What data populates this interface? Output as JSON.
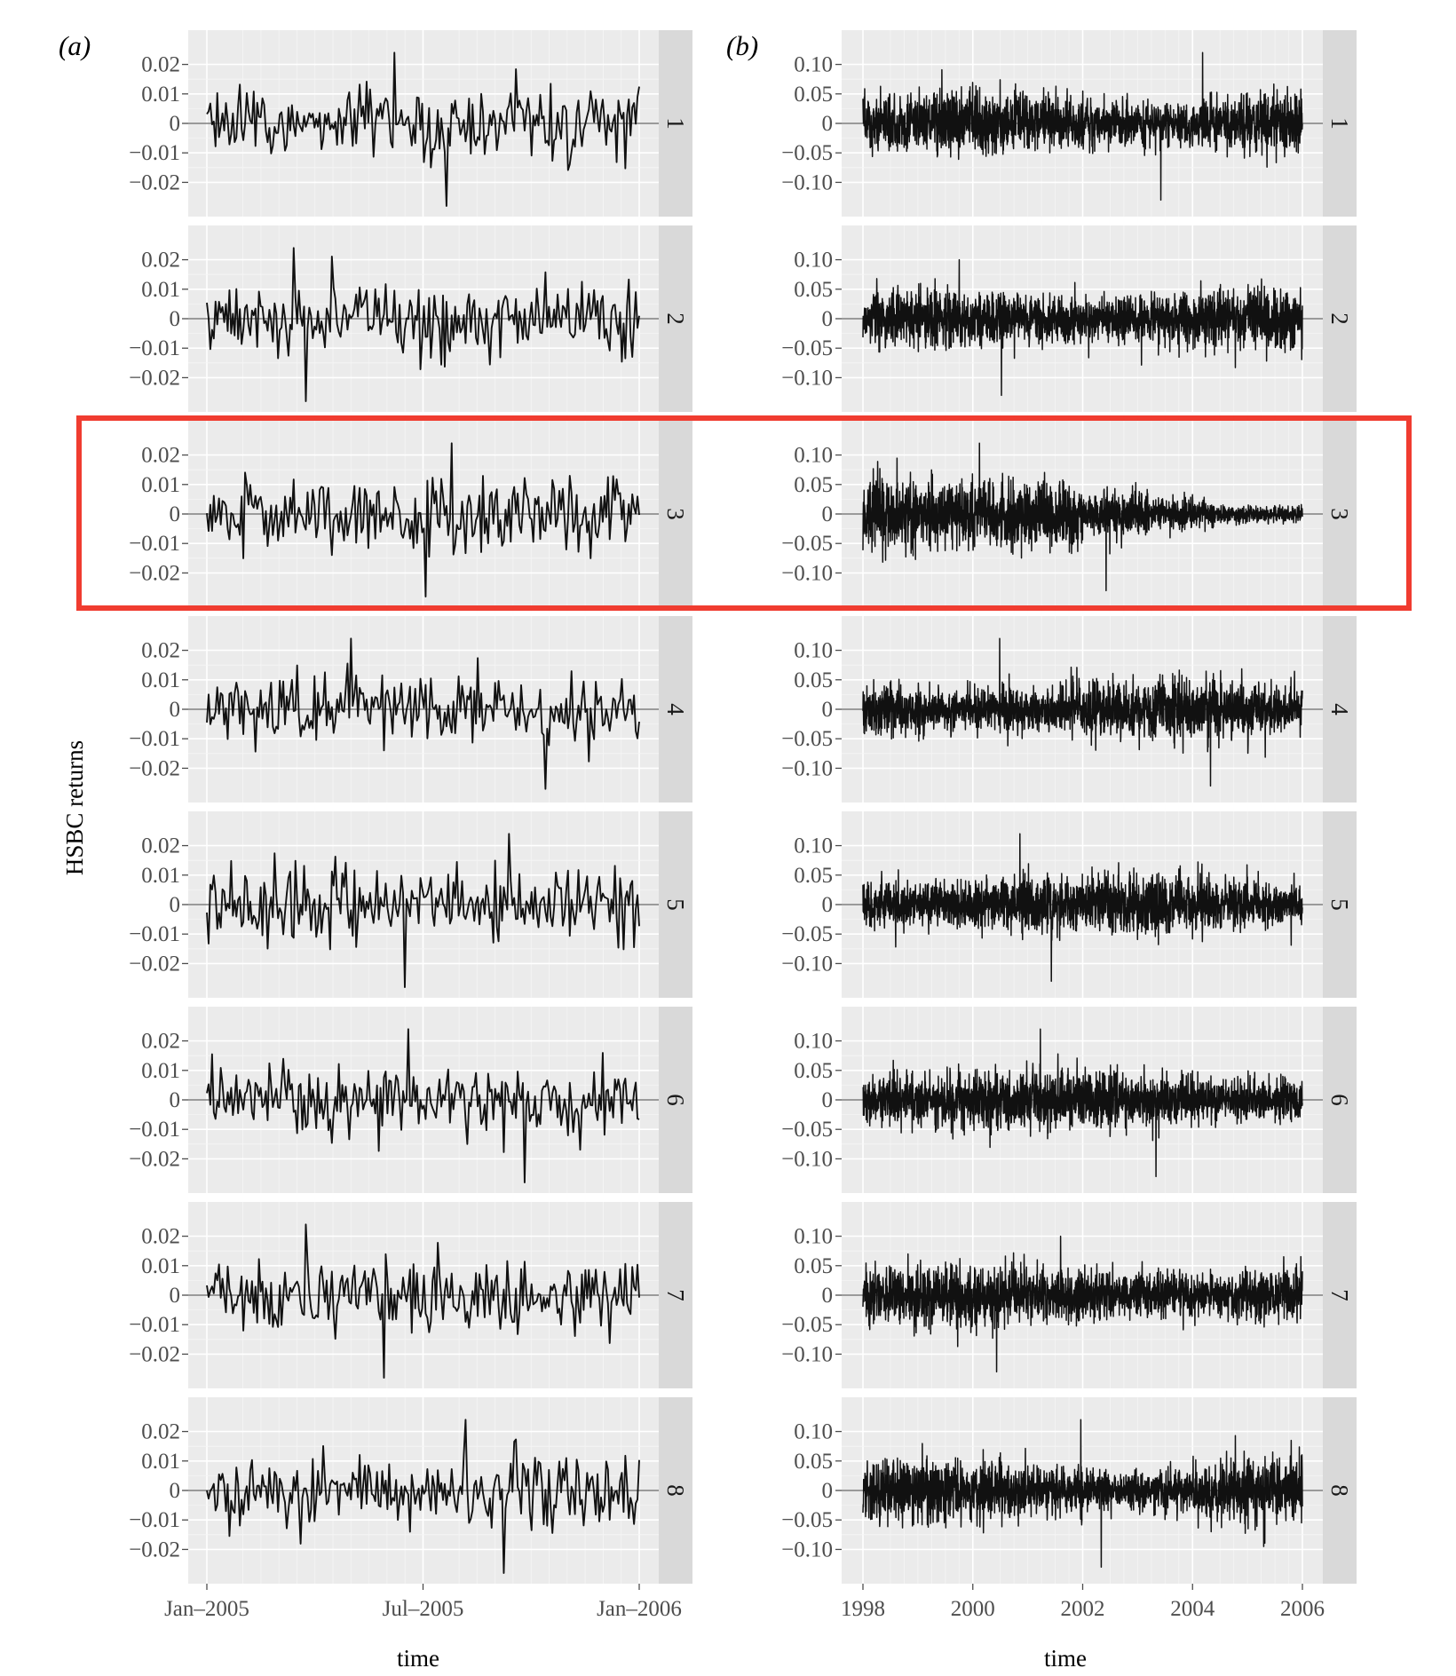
{
  "chart_data": [
    {
      "type": "line",
      "panel_label": "(a)",
      "xlabel": "time",
      "ylabel": "HSBC returns",
      "x_range": [
        "2005-01-01",
        "2006-01-01"
      ],
      "x_ticks": [
        "Jan–2005",
        "Jul–2005",
        "Jan–2006"
      ],
      "ylim": [
        -0.028,
        0.028
      ],
      "y_ticks": [
        "0.02",
        "0.01",
        "0",
        "−0.01",
        "−0.02"
      ],
      "y_tick_values": [
        0.02,
        0.01,
        0,
        -0.01,
        -0.02
      ],
      "facets": [
        "1",
        "2",
        "3",
        "4",
        "5",
        "6",
        "7",
        "8"
      ],
      "approx_points_per_facet": 250,
      "facet_extremes": [
        {
          "facet": "1",
          "max": 0.024,
          "min": -0.028
        },
        {
          "facet": "2",
          "max": 0.024,
          "min": -0.028
        },
        {
          "facet": "3",
          "max": 0.024,
          "min": -0.028
        },
        {
          "facet": "4",
          "max": 0.024,
          "min": -0.027
        },
        {
          "facet": "5",
          "max": 0.024,
          "min": -0.028
        },
        {
          "facet": "6",
          "max": 0.024,
          "min": -0.028
        },
        {
          "facet": "7",
          "max": 0.024,
          "min": -0.028
        },
        {
          "facet": "8",
          "max": 0.024,
          "min": -0.028
        }
      ],
      "grid": true
    },
    {
      "type": "line",
      "panel_label": "(b)",
      "xlabel": "time",
      "x_range": [
        1998,
        2006
      ],
      "x_ticks": [
        "1998",
        "2000",
        "2002",
        "2004",
        "2006"
      ],
      "ylim": [
        -0.14,
        0.14
      ],
      "y_ticks": [
        "0.10",
        "0.05",
        "0",
        "−0.05",
        "−0.10"
      ],
      "y_tick_values": [
        0.1,
        0.05,
        0,
        -0.05,
        -0.1
      ],
      "facets": [
        "1",
        "2",
        "3",
        "4",
        "5",
        "6",
        "7",
        "8"
      ],
      "approx_points_per_facet": 2000,
      "facet_extremes": [
        {
          "facet": "1",
          "max": 0.12,
          "min": -0.13
        },
        {
          "facet": "2",
          "max": 0.1,
          "min": -0.13
        },
        {
          "facet": "3",
          "max": 0.12,
          "min": -0.13
        },
        {
          "facet": "4",
          "max": 0.12,
          "min": -0.13
        },
        {
          "facet": "5",
          "max": 0.12,
          "min": -0.13
        },
        {
          "facet": "6",
          "max": 0.12,
          "min": -0.13
        },
        {
          "facet": "7",
          "max": 0.1,
          "min": -0.13
        },
        {
          "facet": "8",
          "max": 0.12,
          "min": -0.13
        }
      ],
      "volatility_note_facet3": "",
      "grid": true
    }
  ],
  "highlight": {
    "facet": "3",
    "color": "#f03c30"
  }
}
